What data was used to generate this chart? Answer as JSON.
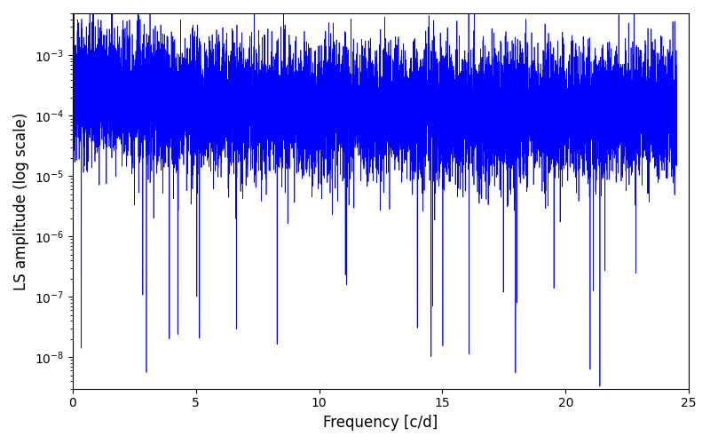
{
  "xlabel": "Frequency [c/d]",
  "ylabel": "LS amplitude (log scale)",
  "xlim": [
    0,
    25
  ],
  "ylim": [
    3e-09,
    0.005
  ],
  "line_color": "#0000ff",
  "line_width": 0.5,
  "n_points": 12000,
  "freq_max": 24.5,
  "freq_min": 0.02,
  "base_amplitude": 0.00012,
  "noise_scale_log": 1.2,
  "seed": 12345,
  "figsize": [
    8.0,
    5.0
  ],
  "dpi": 100,
  "background_color": "#ffffff",
  "tick_label_size": 10,
  "axis_label_size": 12
}
